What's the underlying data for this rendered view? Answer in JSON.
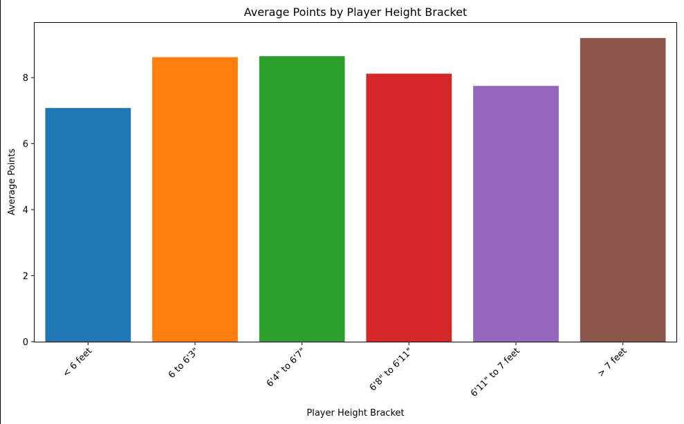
{
  "chart_data": {
    "type": "bar",
    "title": "Average Points by Player Height Bracket",
    "xlabel": "Player Height Bracket",
    "ylabel": "Average Points",
    "categories": [
      "< 6 feet",
      "6 to 6'3\"",
      "6'4\" to 6'7\"",
      "6'8\" to 6'11\"",
      "6'11\" to 7 feet",
      "> 7 feet"
    ],
    "values": [
      7.08,
      8.62,
      8.65,
      8.12,
      7.75,
      9.2
    ],
    "colors": [
      "#1f77b4",
      "#ff7f0e",
      "#2ca02c",
      "#d62728",
      "#9467bd",
      "#8c564b"
    ],
    "ylim": [
      0,
      9.66
    ],
    "yticks": [
      0,
      2,
      4,
      6,
      8
    ],
    "grid": false,
    "legend": "none"
  }
}
